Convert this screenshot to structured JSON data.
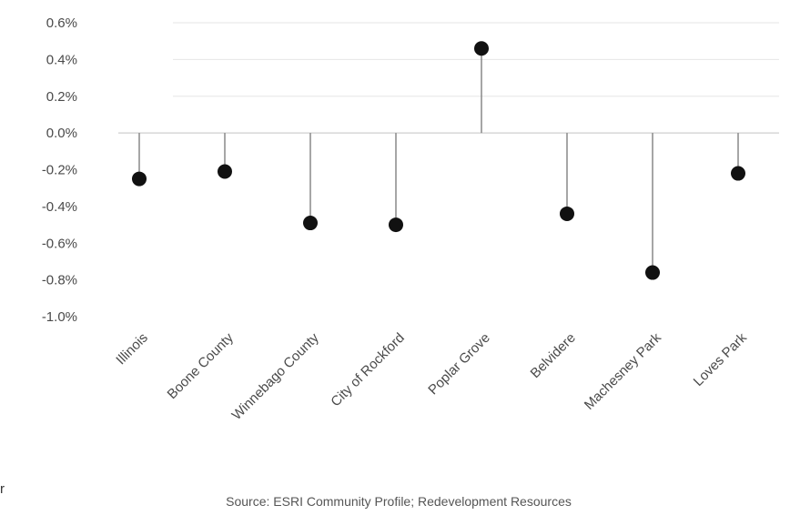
{
  "chart_data": {
    "type": "scatter",
    "style": "lollipop",
    "categories": [
      "Illinois",
      "Boone County",
      "Winnebago County",
      "City of Rockford",
      "Poplar Grove",
      "Belvidere",
      "Machesney Park",
      "Loves Park"
    ],
    "values": [
      -0.25,
      -0.21,
      -0.49,
      -0.5,
      0.46,
      -0.44,
      -0.76,
      -0.22
    ],
    "ylim": [
      -1.0,
      0.6
    ],
    "yticks": [
      0.6,
      0.4,
      0.2,
      0.0,
      -0.2,
      -0.4,
      -0.6,
      -0.8,
      -1.0
    ],
    "ytick_labels": [
      "0.6%",
      "0.4%",
      "0.2%",
      "0.0%",
      "-0.2%",
      "-0.4%",
      "-0.6%",
      "-0.8%",
      "-1.0%"
    ],
    "grid": true,
    "marker_color": "#111111",
    "stem_color": "#777777",
    "grid_color": "#e6e6e6"
  },
  "source": "Source: ESRI Community Profile; Redevelopment Resources",
  "stray_text": "r"
}
